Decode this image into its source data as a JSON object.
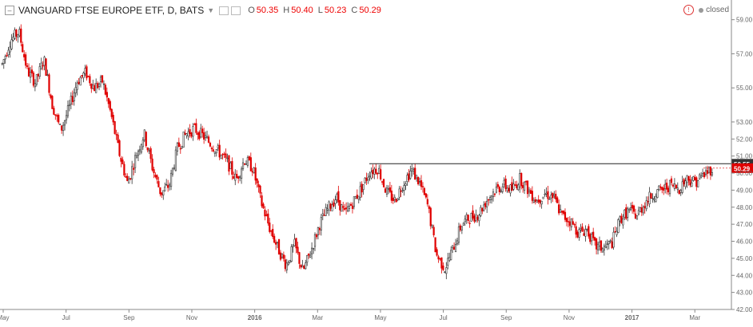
{
  "header": {
    "symbol": "VANGUARD FTSE EUROPE ETF, D, BATS",
    "ohlc": {
      "o_label": "O",
      "o_value": "50.35",
      "h_label": "H",
      "h_value": "50.40",
      "l_label": "L",
      "l_value": "50.23",
      "c_label": "C",
      "c_value": "50.29"
    },
    "status_text": "closed"
  },
  "colors": {
    "up": "#333333",
    "down": "#e00000",
    "price_badge": "#e00000",
    "level_badge": "#333333",
    "axis": "#666666"
  },
  "chart_data": {
    "type": "candlestick",
    "title": "",
    "ylim": [
      42.0,
      59.5
    ],
    "y_ticks": [
      "42.00",
      "43.00",
      "44.00",
      "45.00",
      "46.00",
      "47.00",
      "48.00",
      "49.00",
      "50.00",
      "51.00",
      "52.00",
      "53.00",
      "55.00",
      "57.00",
      "59.00"
    ],
    "x_ticks": [
      "May",
      "Jul",
      "Sep",
      "Nov",
      "2016",
      "Mar",
      "May",
      "Jul",
      "Sep",
      "Nov",
      "2017",
      "Mar"
    ],
    "horizontal_line": {
      "value": "50.55"
    },
    "last_price": "50.29",
    "path": [
      [
        "May",
        56.4
      ],
      [
        "May+",
        57.8
      ],
      [
        "May++",
        58.3
      ],
      [
        "Jun",
        56.0
      ],
      [
        "Jun+",
        55.3
      ],
      [
        "Jun++",
        56.7
      ],
      [
        "Jun+++",
        54.0
      ],
      [
        "Jul-",
        52.5
      ],
      [
        "Jul",
        53.8
      ],
      [
        "Jul+",
        55.4
      ],
      [
        "Jul++",
        55.9
      ],
      [
        "Aug-",
        55.0
      ],
      [
        "Aug",
        55.4
      ],
      [
        "Aug+",
        53.5
      ],
      [
        "Aug++",
        51.2
      ],
      [
        "Sep-",
        49.4
      ],
      [
        "Sep",
        51.0
      ],
      [
        "Sep+",
        52.3
      ],
      [
        "Sep++",
        50.3
      ],
      [
        "Oct-",
        48.8
      ],
      [
        "Oct",
        49.3
      ],
      [
        "Oct+",
        51.5
      ],
      [
        "Oct++",
        52.3
      ],
      [
        "Nov-",
        52.6
      ],
      [
        "Nov",
        52.2
      ],
      [
        "Nov+",
        51.7
      ],
      [
        "Nov++",
        51.2
      ],
      [
        "Dec-",
        50.6
      ],
      [
        "Dec",
        49.6
      ],
      [
        "Dec+",
        50.8
      ],
      [
        "2016",
        50.3
      ],
      [
        "2016+",
        48.3
      ],
      [
        "Jan",
        46.8
      ],
      [
        "Feb-",
        45.6
      ],
      [
        "Feb",
        44.6
      ],
      [
        "Feb+",
        45.8
      ],
      [
        "Feb++",
        44.2
      ],
      [
        "Mar-",
        45.5
      ],
      [
        "Mar",
        47.0
      ],
      [
        "Mar+",
        47.9
      ],
      [
        "Mar++",
        48.6
      ],
      [
        "Apr-",
        47.6
      ],
      [
        "Apr",
        48.3
      ],
      [
        "Apr+",
        49.1
      ],
      [
        "Apr++",
        50.1
      ],
      [
        "May-",
        50.3
      ],
      [
        "May",
        48.9
      ],
      [
        "May+",
        48.4
      ],
      [
        "May++",
        49.4
      ],
      [
        "Jun-",
        50.2
      ],
      [
        "Jun",
        49.4
      ],
      [
        "Jun+",
        48.0
      ],
      [
        "Jun++",
        45.2
      ],
      [
        "Jul-",
        44.4
      ],
      [
        "Jul",
        45.6
      ],
      [
        "Jul+",
        47.0
      ],
      [
        "Jul++",
        47.4
      ],
      [
        "Aug-",
        47.6
      ],
      [
        "Aug",
        48.4
      ],
      [
        "Aug+",
        49.0
      ],
      [
        "Aug++",
        49.3
      ],
      [
        "Sep-",
        49.0
      ],
      [
        "Sep",
        49.7
      ],
      [
        "Sep+",
        49.0
      ],
      [
        "Sep++",
        48.4
      ],
      [
        "Oct-",
        48.8
      ],
      [
        "Oct",
        48.6
      ],
      [
        "Oct+",
        47.5
      ],
      [
        "Oct++",
        47.2
      ],
      [
        "Nov-",
        46.5
      ],
      [
        "Nov",
        46.7
      ],
      [
        "Nov+",
        45.7
      ],
      [
        "Nov++",
        45.6
      ],
      [
        "Dec-",
        45.9
      ],
      [
        "Dec",
        47.3
      ],
      [
        "Dec+",
        47.8
      ],
      [
        "Dec++",
        47.5
      ],
      [
        "2017",
        48.3
      ],
      [
        "2017+",
        48.8
      ],
      [
        "Jan",
        49.0
      ],
      [
        "Feb-",
        49.3
      ],
      [
        "Feb",
        49.1
      ],
      [
        "Feb+",
        49.7
      ],
      [
        "Mar-",
        49.5
      ],
      [
        "Mar",
        49.9
      ],
      [
        "Mar+",
        50.3
      ]
    ]
  }
}
